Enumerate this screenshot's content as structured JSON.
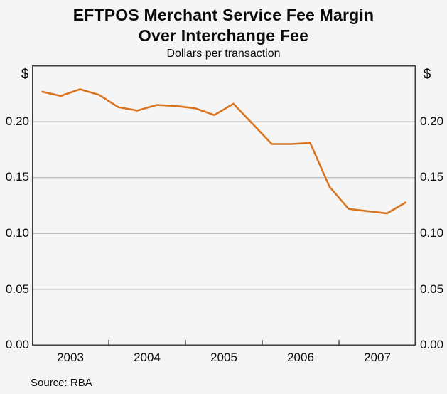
{
  "chart_data": {
    "type": "line",
    "title_line1": "EFTPOS Merchant Service Fee Margin",
    "title_line2": "Over Interchange Fee",
    "subtitle": "Dollars per transaction",
    "unit_symbol_left": "$",
    "unit_symbol_right": "$",
    "categories": [
      "2003Q1",
      "2003Q2",
      "2003Q3",
      "2003Q4",
      "2004Q1",
      "2004Q2",
      "2004Q3",
      "2004Q4",
      "2005Q1",
      "2005Q2",
      "2005Q3",
      "2005Q4",
      "2006Q1",
      "2006Q2",
      "2006Q3",
      "2006Q4",
      "2007Q1",
      "2007Q2",
      "2007Q3",
      "2007Q4"
    ],
    "series": [
      {
        "name": "EFTPOS merchant service fee margin over interchange fee",
        "values": [
          0.227,
          0.223,
          0.229,
          0.224,
          0.213,
          0.21,
          0.215,
          0.214,
          0.212,
          0.206,
          0.216,
          0.198,
          0.18,
          0.18,
          0.181,
          0.142,
          0.122,
          0.12,
          0.118,
          0.128
        ]
      }
    ],
    "x_domain": [
      2003,
      2008
    ],
    "ylim": [
      0,
      0.25
    ],
    "ytick_labels": [
      "0.20",
      "0.15",
      "0.10",
      "0.05",
      "0.00"
    ],
    "gridline_values": [
      0.05,
      0.1,
      0.15,
      0.2
    ],
    "xtick_labels": [
      "2003",
      "2004",
      "2005",
      "2006",
      "2007"
    ],
    "xtick_boundary_years": [
      2004,
      2005,
      2006,
      2007
    ],
    "source": "Source: RBA",
    "line_color": "#D9731E",
    "grid_color": "#ABABAB",
    "frame_color": "#3D3D3D",
    "background_color": "#F5F5F6",
    "legend": "none",
    "grid": "horizontal-only"
  }
}
